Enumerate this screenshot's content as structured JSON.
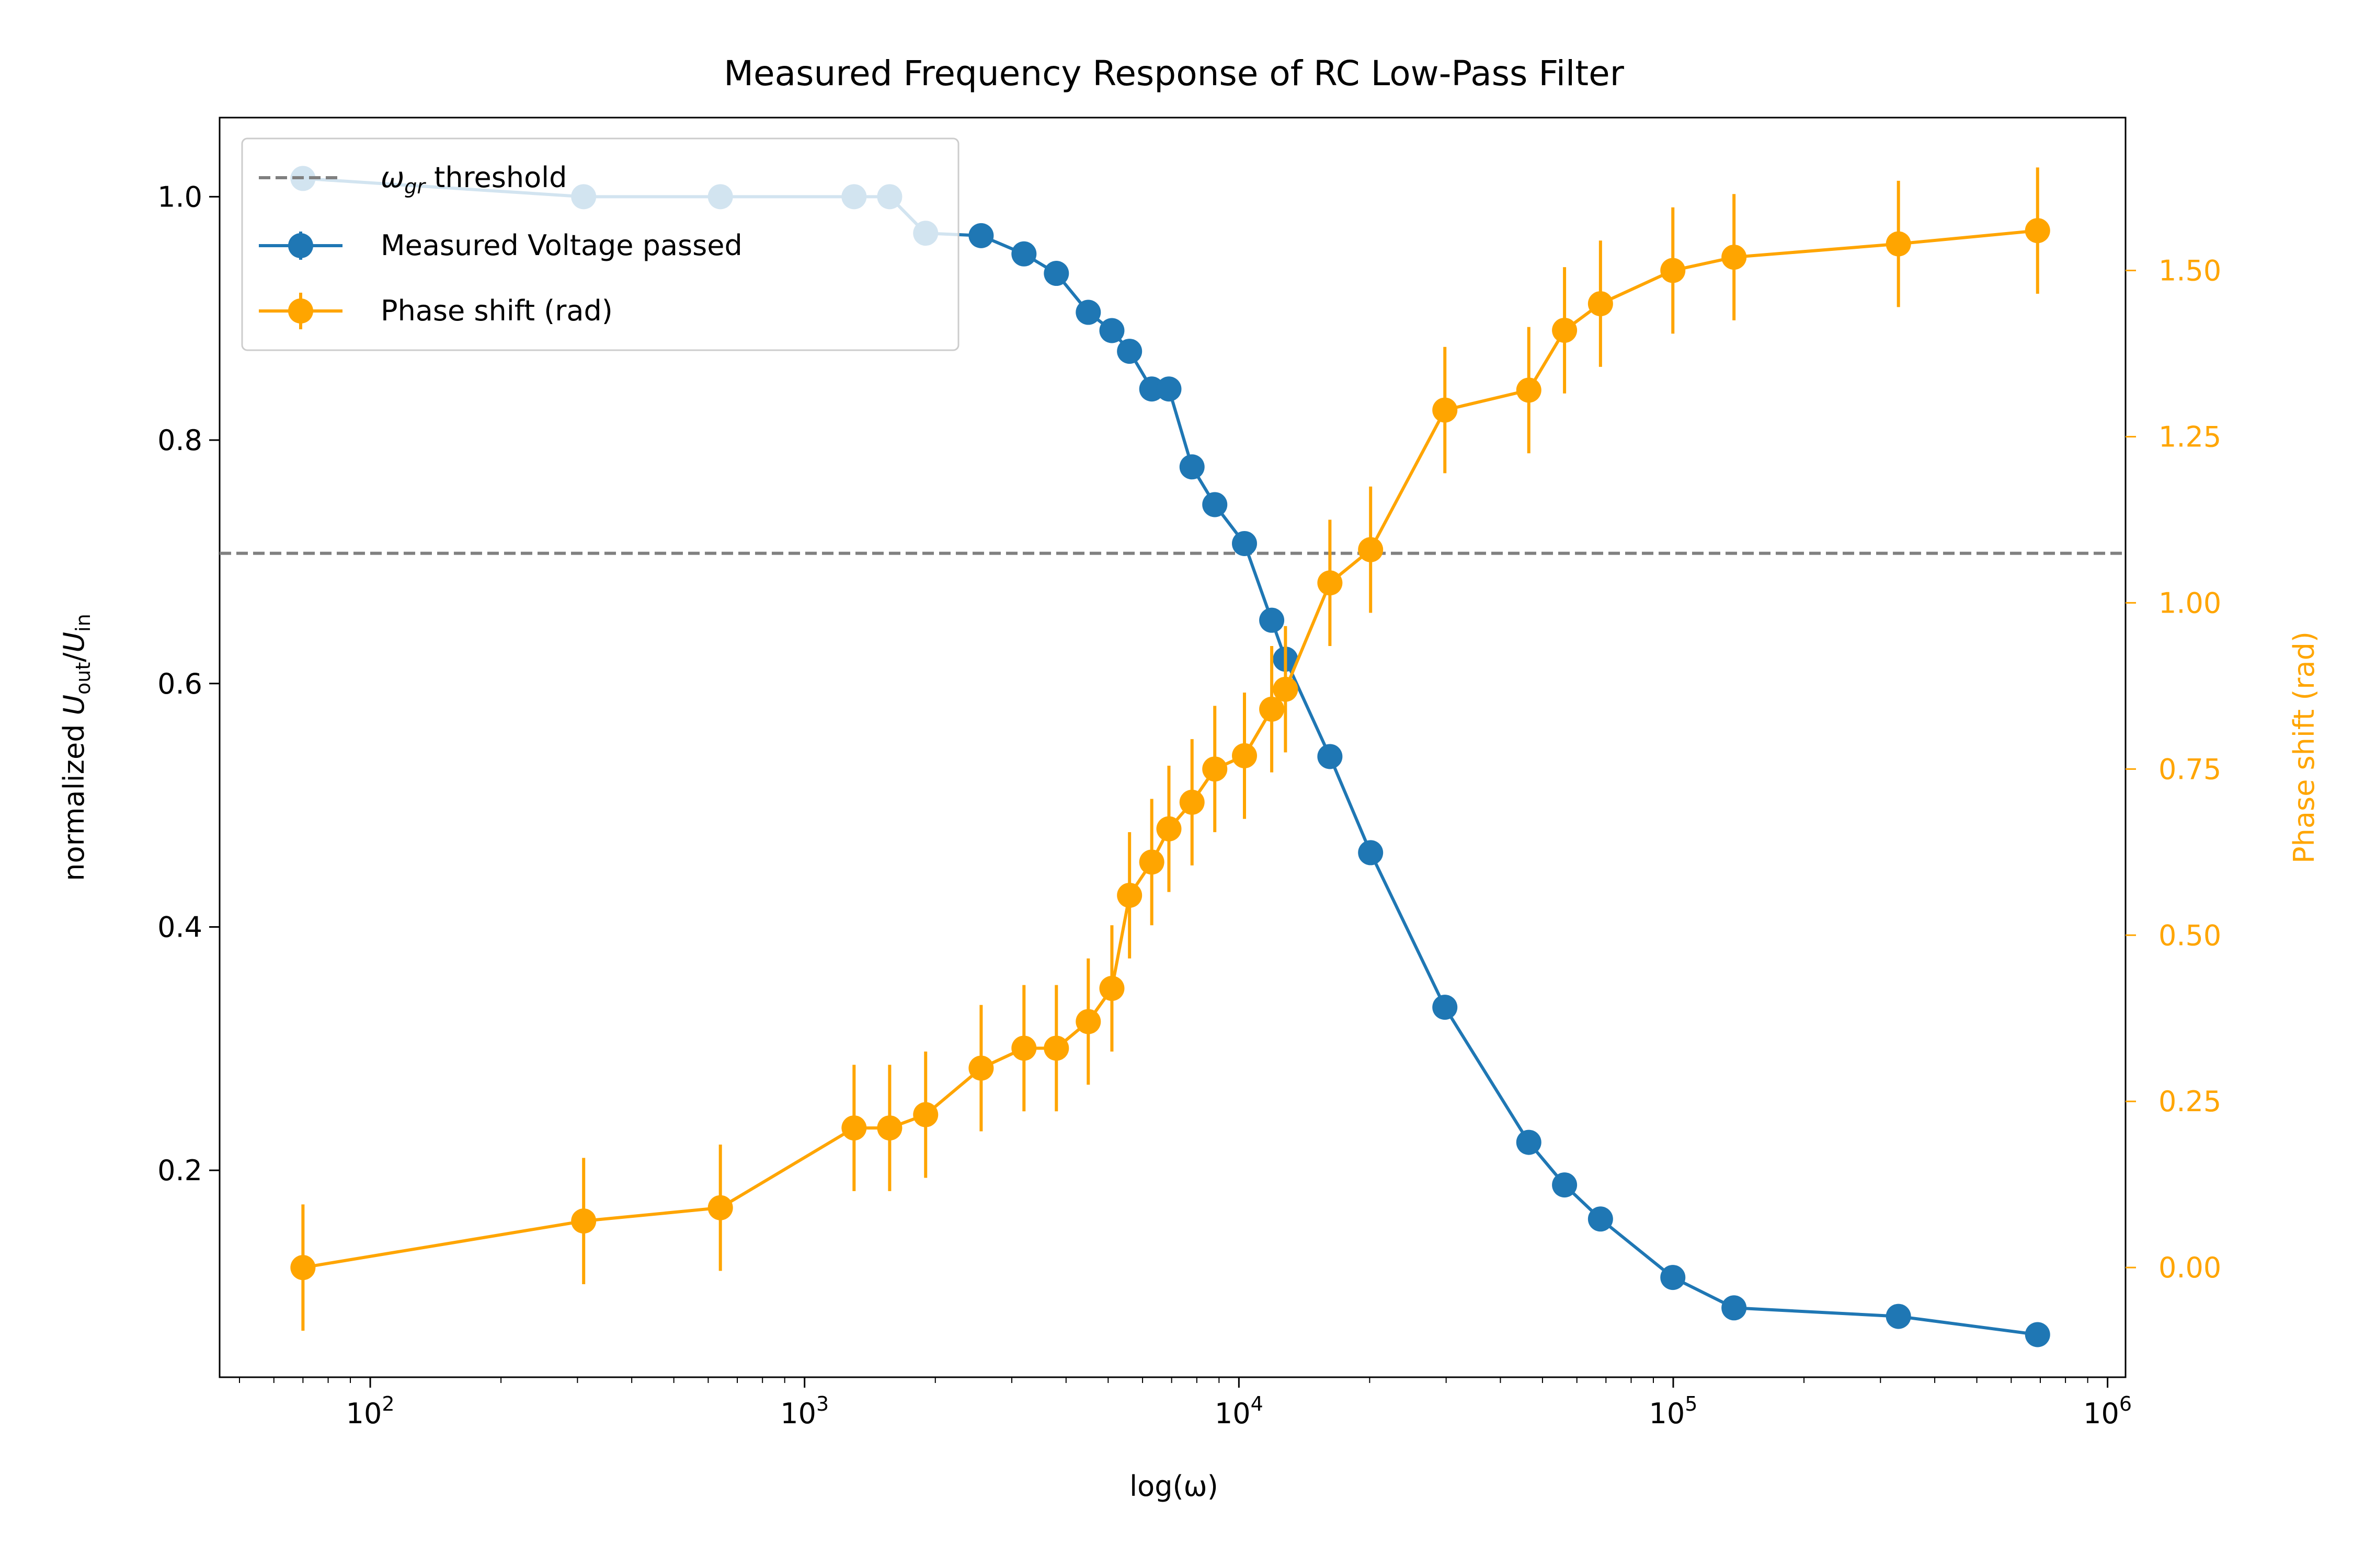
{
  "chart_data": {
    "type": "line",
    "title": "Measured Frequency Response of RC Low-Pass Filter",
    "xlabel": "log(ω)",
    "x_scale": "log",
    "xlim": [
      45,
      1100000
    ],
    "x_tick_values": [
      100,
      1000,
      10000,
      100000,
      1000000
    ],
    "x_tick_labels": [
      {
        "base": "10",
        "exp": "2"
      },
      {
        "base": "10",
        "exp": "3"
      },
      {
        "base": "10",
        "exp": "4"
      },
      {
        "base": "10",
        "exp": "5"
      },
      {
        "base": "10",
        "exp": "6"
      }
    ],
    "ylabel_left": {
      "prefix": "normalized ",
      "u1": "U",
      "sub1": "out",
      "slash": "/",
      "u2": "U",
      "sub2": "in"
    },
    "ylim_left": [
      0.03,
      1.065
    ],
    "y_ticks_left": [
      "0.2",
      "0.4",
      "0.6",
      "0.8",
      "1.0"
    ],
    "ylabel_right": "Phase shift (rad)",
    "ylim_right": [
      -0.165,
      1.73
    ],
    "y_ticks_right": [
      "0.00",
      "0.25",
      "0.50",
      "0.75",
      "1.00",
      "1.25",
      "1.50"
    ],
    "grid": false,
    "legend_position": "upper-left",
    "x": [
      70,
      310,
      640,
      1300,
      1570,
      1900,
      2550,
      3200,
      3800,
      4500,
      5100,
      5600,
      6300,
      6900,
      7800,
      8800,
      10300,
      11900,
      12800,
      16200,
      20100,
      29800,
      46500,
      56200,
      68000,
      99800,
      138000,
      330000,
      690000
    ],
    "series": [
      {
        "name": "Measured Voltage passed",
        "axis": "left",
        "color": "#1f77b4",
        "values": [
          1.015,
          1.0,
          1.0,
          1.0,
          1.0,
          0.97,
          0.968,
          0.953,
          0.937,
          0.905,
          0.89,
          0.873,
          0.842,
          0.842,
          0.778,
          0.747,
          0.715,
          0.652,
          0.62,
          0.54,
          0.461,
          0.334,
          0.223,
          0.188,
          0.16,
          0.112,
          0.087,
          0.08,
          0.065
        ]
      },
      {
        "name": "Phase shift (rad)",
        "axis": "right",
        "color": "#ffa500",
        "values": [
          0.0,
          0.07,
          0.09,
          0.21,
          0.21,
          0.23,
          0.3,
          0.33,
          0.33,
          0.37,
          0.42,
          0.56,
          0.61,
          0.66,
          0.7,
          0.75,
          0.77,
          0.84,
          0.87,
          1.03,
          1.08,
          1.29,
          1.32,
          1.41,
          1.45,
          1.5,
          1.52,
          1.54,
          1.56
        ],
        "errors": [
          0.095,
          0.095,
          0.095,
          0.095,
          0.095,
          0.095,
          0.095,
          0.095,
          0.095,
          0.095,
          0.095,
          0.095,
          0.095,
          0.095,
          0.095,
          0.095,
          0.095,
          0.095,
          0.095,
          0.095,
          0.095,
          0.095,
          0.095,
          0.095,
          0.095,
          0.095,
          0.095,
          0.095,
          0.095
        ]
      }
    ],
    "threshold": {
      "name": "ω_gr threshold",
      "legend_symbol": "ω",
      "legend_sub": "gr",
      "legend_suffix": " threshold",
      "axis": "left",
      "value": 0.707,
      "color": "#808080",
      "style": "dashed"
    }
  }
}
